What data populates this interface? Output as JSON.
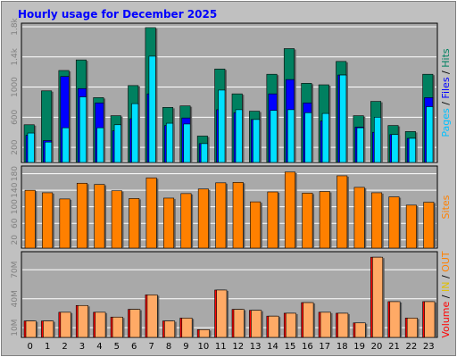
{
  "title": "Hourly usage for December 2025",
  "colors": {
    "background": "#c0c0c0",
    "plot_background": "#a9a9a9",
    "gridline": "#ffffff",
    "hits": "#008060",
    "files": "#0000ff",
    "pages": "#00e0ff",
    "sites": "#ff8000",
    "kbytes": "#ff0000",
    "volume_in": "#ffaa66",
    "text_blue": "#0000ff",
    "text_green": "#008060",
    "text_red": "#ff0000",
    "text_orange": "#ff8000",
    "text_yellow": "#e0c000"
  },
  "legend": {
    "panel1": [
      {
        "text": "Pages",
        "color": "#00c0ff"
      },
      {
        "text": " / ",
        "color": "#000000"
      },
      {
        "text": "Files",
        "color": "#0000ff"
      },
      {
        "text": " / ",
        "color": "#000000"
      },
      {
        "text": "Hits",
        "color": "#008060"
      }
    ],
    "panel2": [
      {
        "text": "Sites",
        "color": "#ff8000"
      }
    ],
    "panel3": [
      {
        "text": "Volume",
        "color": "#ff0000"
      },
      {
        "text": " / ",
        "color": "#000000"
      },
      {
        "text": "IN",
        "color": "#e0c000"
      },
      {
        "text": " / ",
        "color": "#000000"
      },
      {
        "text": "OUT",
        "color": "#ff8000"
      }
    ]
  },
  "chart_data": [
    {
      "type": "bar",
      "categories": [
        "0",
        "1",
        "2",
        "3",
        "4",
        "5",
        "6",
        "7",
        "8",
        "9",
        "10",
        "11",
        "12",
        "13",
        "14",
        "15",
        "16",
        "17",
        "18",
        "19",
        "20",
        "21",
        "22",
        "23"
      ],
      "ylim": [
        0,
        1800
      ],
      "yticks": [
        "200",
        "600",
        "1000",
        "1.4k",
        "1.8k"
      ],
      "ytick_values": [
        200,
        600,
        1000,
        1400,
        1800
      ],
      "grid": true,
      "series": [
        {
          "name": "Hits",
          "values": [
            500,
            950,
            1220,
            1360,
            860,
            620,
            1020,
            1790,
            730,
            750,
            350,
            1240,
            910,
            680,
            1170,
            1510,
            1050,
            1030,
            1340,
            620,
            810,
            490,
            410,
            1170
          ]
        },
        {
          "name": "Files",
          "values": [
            360,
            290,
            1140,
            980,
            790,
            420,
            580,
            910,
            490,
            590,
            250,
            700,
            660,
            570,
            910,
            1100,
            790,
            550,
            1160,
            470,
            400,
            370,
            320,
            860
          ]
        },
        {
          "name": "Pages",
          "values": [
            390,
            270,
            460,
            870,
            460,
            500,
            780,
            1410,
            520,
            510,
            250,
            960,
            700,
            570,
            690,
            700,
            660,
            650,
            1160,
            460,
            600,
            370,
            320,
            740
          ]
        }
      ]
    },
    {
      "type": "bar",
      "categories": [
        "0",
        "1",
        "2",
        "3",
        "4",
        "5",
        "6",
        "7",
        "8",
        "9",
        "10",
        "11",
        "12",
        "13",
        "14",
        "15",
        "16",
        "17",
        "18",
        "19",
        "20",
        "21",
        "22",
        "23"
      ],
      "ylim": [
        0,
        190
      ],
      "yticks": [
        "20",
        "60",
        "100",
        "140",
        "180"
      ],
      "ytick_values": [
        20,
        60,
        100,
        140,
        180
      ],
      "grid": true,
      "series": [
        {
          "name": "Sites",
          "values": [
            140,
            134,
            119,
            157,
            154,
            139,
            120,
            170,
            121,
            132,
            143,
            158,
            159,
            112,
            136,
            184,
            133,
            137,
            175,
            147,
            134,
            124,
            104,
            111
          ]
        }
      ]
    },
    {
      "type": "bar",
      "categories": [
        "0",
        "1",
        "2",
        "3",
        "4",
        "5",
        "6",
        "7",
        "8",
        "9",
        "10",
        "11",
        "12",
        "13",
        "14",
        "15",
        "16",
        "17",
        "18",
        "19",
        "20",
        "21",
        "22",
        "23"
      ],
      "ylim": [
        0,
        85
      ],
      "yticks": [
        "10M",
        "40M",
        "70M"
      ],
      "ytick_values": [
        10,
        40,
        70
      ],
      "grid": true,
      "series": [
        {
          "name": "Volume",
          "values": [
            17,
            17,
            26,
            33,
            26,
            21,
            29,
            44,
            17,
            20,
            8,
            49,
            29,
            28,
            22,
            25,
            36,
            26,
            25,
            15,
            83,
            37,
            20,
            37
          ]
        },
        {
          "name": "IN",
          "values": [
            17,
            17,
            26,
            33,
            26,
            21,
            29,
            44,
            17,
            20,
            8,
            49,
            29,
            28,
            22,
            25,
            36,
            26,
            25,
            15,
            83,
            37,
            20,
            37
          ]
        }
      ]
    }
  ]
}
